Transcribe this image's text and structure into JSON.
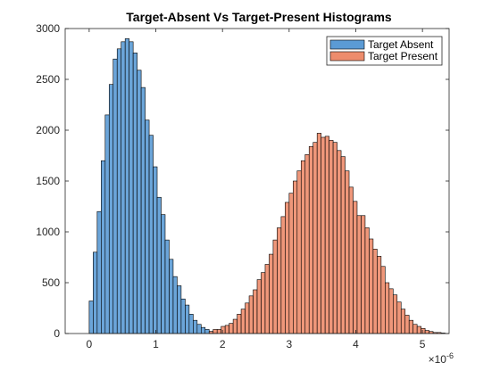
{
  "chart_data": {
    "type": "bar",
    "title": "Target-Absent Vs Target-Present Histograms",
    "xlabel": "",
    "ylabel": "",
    "x_exponent_label": "×10",
    "x_exponent_power": "-6",
    "xlim": [
      -0.36,
      5.4
    ],
    "ylim": [
      0,
      3000
    ],
    "x_ticks": [
      "0",
      "1",
      "2",
      "3",
      "4",
      "5"
    ],
    "y_ticks": [
      "0",
      "500",
      "1000",
      "1500",
      "2000",
      "2500",
      "3000"
    ],
    "grid": false,
    "legend_position": "top-right",
    "bin_width": 0.06,
    "series": [
      {
        "name": "Target Absent",
        "color": "#5B9BD5",
        "bin_start": 0,
        "values": [
          320,
          800,
          1200,
          1700,
          2150,
          2450,
          2700,
          2800,
          2870,
          2900,
          2870,
          2760,
          2590,
          2420,
          2100,
          1950,
          1640,
          1340,
          1170,
          920,
          730,
          560,
          470,
          340,
          280,
          190,
          130,
          90,
          60,
          40,
          20,
          10
        ]
      },
      {
        "name": "Target Present",
        "color": "#ED8C6C",
        "bin_start": 1.8,
        "values": [
          20,
          40,
          40,
          70,
          80,
          100,
          140,
          190,
          240,
          300,
          370,
          430,
          530,
          600,
          680,
          780,
          920,
          1040,
          1150,
          1290,
          1380,
          1500,
          1600,
          1700,
          1760,
          1840,
          1880,
          1970,
          1930,
          1940,
          1900,
          1880,
          1800,
          1740,
          1600,
          1440,
          1300,
          1160,
          1160,
          1040,
          930,
          830,
          760,
          660,
          500,
          440,
          380,
          310,
          240,
          180,
          130,
          90,
          70,
          50,
          30,
          20,
          10,
          10,
          5
        ]
      }
    ]
  }
}
